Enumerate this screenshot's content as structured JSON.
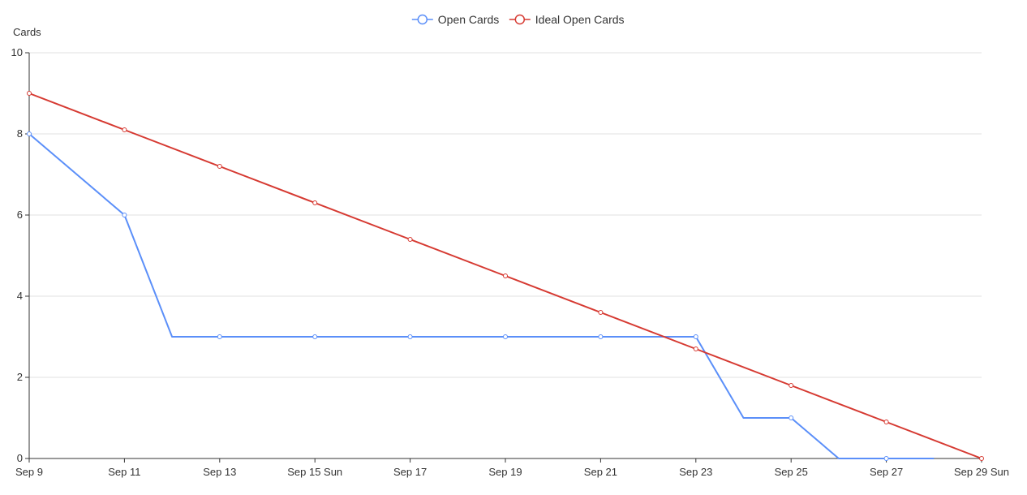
{
  "chart_data": {
    "type": "line",
    "title": "",
    "xlabel": "",
    "ylabel": "Cards",
    "ylim": [
      0,
      10
    ],
    "yticks": [
      0,
      2,
      4,
      6,
      8,
      10
    ],
    "grid": true,
    "legend_position": "top-center",
    "x_start": "Sep 9",
    "x_end": "Sep 29",
    "x_ticks": [
      {
        "x": "Sep 9",
        "label": "Sep 9"
      },
      {
        "x": "Sep 11",
        "label": "Sep 11"
      },
      {
        "x": "Sep 13",
        "label": "Sep 13"
      },
      {
        "x": "Sep 15",
        "label": "Sep 15 Sun"
      },
      {
        "x": "Sep 17",
        "label": "Sep 17"
      },
      {
        "x": "Sep 19",
        "label": "Sep 19"
      },
      {
        "x": "Sep 21",
        "label": "Sep 21"
      },
      {
        "x": "Sep 23",
        "label": "Sep 23"
      },
      {
        "x": "Sep 25",
        "label": "Sep 25"
      },
      {
        "x": "Sep 27",
        "label": "Sep 27"
      },
      {
        "x": "Sep 29",
        "label": "Sep 29 Sun"
      }
    ],
    "series": [
      {
        "name": "Open Cards",
        "color": "#5b8ff9",
        "points": [
          {
            "x": "Sep 9",
            "y": 8,
            "marker": true
          },
          {
            "x": "Sep 11",
            "y": 6,
            "marker": true
          },
          {
            "x": "Sep 12",
            "y": 3,
            "marker": false
          },
          {
            "x": "Sep 13",
            "y": 3,
            "marker": true
          },
          {
            "x": "Sep 15",
            "y": 3,
            "marker": true
          },
          {
            "x": "Sep 17",
            "y": 3,
            "marker": true
          },
          {
            "x": "Sep 19",
            "y": 3,
            "marker": true
          },
          {
            "x": "Sep 21",
            "y": 3,
            "marker": true
          },
          {
            "x": "Sep 23",
            "y": 3,
            "marker": true
          },
          {
            "x": "Sep 24",
            "y": 1,
            "marker": false
          },
          {
            "x": "Sep 25",
            "y": 1,
            "marker": true
          },
          {
            "x": "Sep 26",
            "y": 0,
            "marker": false
          },
          {
            "x": "Sep 27",
            "y": 0,
            "marker": true
          },
          {
            "x": "Sep 28",
            "y": 0,
            "marker": false
          }
        ]
      },
      {
        "name": "Ideal Open Cards",
        "color": "#d63a32",
        "points": [
          {
            "x": "Sep 9",
            "y": 9,
            "marker": true
          },
          {
            "x": "Sep 11",
            "y": 8.1,
            "marker": true
          },
          {
            "x": "Sep 13",
            "y": 7.2,
            "marker": true
          },
          {
            "x": "Sep 15",
            "y": 6.3,
            "marker": true
          },
          {
            "x": "Sep 17",
            "y": 5.4,
            "marker": true
          },
          {
            "x": "Sep 19",
            "y": 4.5,
            "marker": true
          },
          {
            "x": "Sep 21",
            "y": 3.6,
            "marker": true
          },
          {
            "x": "Sep 23",
            "y": 2.7,
            "marker": true
          },
          {
            "x": "Sep 25",
            "y": 1.8,
            "marker": true
          },
          {
            "x": "Sep 27",
            "y": 0.9,
            "marker": true
          },
          {
            "x": "Sep 29",
            "y": 0,
            "marker": true
          }
        ]
      }
    ]
  },
  "colors": {
    "grid": "#e0e0e0",
    "axis": "#333333",
    "text": "#333333"
  }
}
